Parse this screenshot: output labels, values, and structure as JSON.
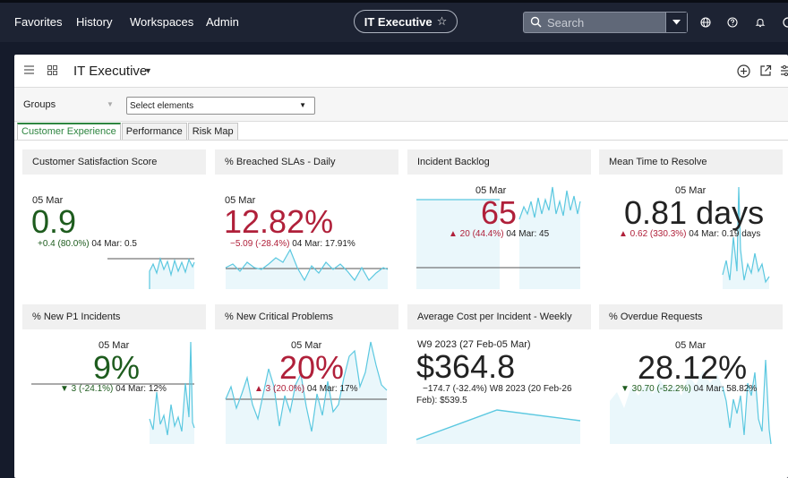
{
  "nav": {
    "items": [
      "Favorites",
      "History",
      "Workspaces",
      "Admin"
    ],
    "title": "IT Executive",
    "title_icon": "star-outline-icon",
    "search_placeholder": "Search"
  },
  "workspace": {
    "title": "IT Executive",
    "groups_label": "Groups",
    "select_placeholder": "Select elements",
    "tabs": [
      "Customer Experience",
      "Performance",
      "Risk Map"
    ],
    "active_tab": "Customer Experience"
  },
  "cards": [
    {
      "title": "Customer Satisfaction Score",
      "date": "05 Mar",
      "value": "0.9",
      "delta": "+0.4 (80.0%)",
      "delta_dir": "up-good",
      "prev": "04 Mar: 0.5",
      "color": "#1e5c1e"
    },
    {
      "title": "% Breached SLAs - Daily",
      "date": "05 Mar",
      "value": "12.82%",
      "delta": "−5.09 (-28.4%)",
      "delta_dir": "down-bad",
      "prev": "04 Mar: 17.91%",
      "color": "#b0203a"
    },
    {
      "title": "Incident Backlog",
      "date": "05 Mar",
      "value": "65",
      "delta": "▲ 20 (44.4%)",
      "delta_dir": "up-bad",
      "prev": "04 Mar: 45",
      "color": "#b0203a"
    },
    {
      "title": "Mean Time to Resolve",
      "date": "05 Mar",
      "value": "0.81 days",
      "delta": "▲ 0.62 (330.3%)",
      "delta_dir": "up-bad",
      "prev": "04 Mar: 0.19 days",
      "color": "#222222"
    },
    {
      "title": "% New P1 Incidents",
      "date": "05 Mar",
      "value": "9%",
      "delta": "▼ 3 (-24.1%)",
      "delta_dir": "down-good",
      "prev": "04 Mar: 12%",
      "color": "#1e5c1e"
    },
    {
      "title": "% New Critical Problems",
      "date": "05 Mar",
      "value": "20%",
      "delta": "▲ 3 (20.0%)",
      "delta_dir": "up-bad",
      "prev": "04 Mar: 17%",
      "color": "#b0203a"
    },
    {
      "title": "Average Cost per Incident - Weekly",
      "date": "W9 2023 (27 Feb-05 Mar)",
      "value": "$364.8",
      "delta": "−174.7 (-32.4%)",
      "delta_dir": "down",
      "prev": "W8 2023 (20 Feb-26 Feb): $539.5",
      "color": "#222222"
    },
    {
      "title": "% Overdue Requests",
      "date": "05 Mar",
      "value": "28.12%",
      "delta": "▼ 30.70 (-52.2%)",
      "delta_dir": "down-good",
      "prev": "04 Mar: 58.82%",
      "color": "#222222"
    }
  ],
  "colors": {
    "nav_bg": "#1d2333",
    "spark_line": "#5bc8e0",
    "spark_fill": "#eaf7fb",
    "good": "#1e5c1e",
    "bad": "#b0203a",
    "active_tab": "#2e8540"
  }
}
